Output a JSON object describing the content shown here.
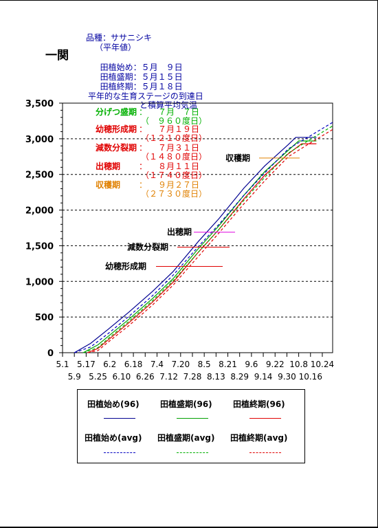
{
  "location_title": "一関",
  "cultivar_line": "品種：ササニシキ",
  "normal_note": "（平年値）",
  "planting_info": [
    {
      "label": "田植始め：",
      "value": "５月　９日"
    },
    {
      "label": "田植盛期：",
      "value": "５月１５日"
    },
    {
      "label": "田植終期：",
      "value": "５月１８日"
    }
  ],
  "chart_heading_1": "平年的な生育ステージの到達日",
  "chart_heading_2": "と積算平均気温",
  "stages": [
    {
      "name": "分げつ盛期",
      "colon": "：",
      "date": "７月　７日",
      "degree": "（　９６０度日）",
      "color": "#00b000",
      "line_y": null
    },
    {
      "name": "幼穂形成期",
      "colon": "：",
      "date": "７月１９日",
      "degree": "（１２１０度日）",
      "color": "#e00000",
      "line_y": 1210
    },
    {
      "name": "減数分裂期",
      "colon": "：",
      "date": "７月３１日",
      "degree": "（１４８０度日）",
      "color": "#e00000",
      "line_y": 1480
    },
    {
      "name": "出穂期",
      "colon": "：",
      "date": "８月１１日",
      "degree": "（１７４０度日）",
      "color": "#e00000",
      "line_y": 1740
    },
    {
      "name": "収穫期",
      "colon": "：",
      "date": "９月２７日",
      "degree": "（２７３０度日）",
      "color": "#e08000",
      "line_y": 2730
    }
  ],
  "chart_labels": {
    "heading_stage": "幼穂形成期",
    "meiosis": "減数分裂期",
    "heading": "出穂期",
    "harvest": "収穫期"
  },
  "chart_data": {
    "type": "line",
    "ylim": [
      0,
      3500
    ],
    "y_ticks": [
      "0",
      "500",
      "1,000",
      "1,500",
      "2,000",
      "2,500",
      "3,000",
      "3,500"
    ],
    "x_tick_labels_row1": [
      "5.1",
      "5.17",
      "6.2",
      "6.18",
      "7.4",
      "7.20",
      "8.5",
      "8.21",
      "9.6",
      "9.22",
      "10.8",
      "10.24"
    ],
    "x_tick_labels_row2": [
      "5.9",
      "5.25",
      "6.10",
      "6.26",
      "7.12",
      "7.28",
      "8.13",
      "8.29",
      "9.14",
      "9.30",
      "10.16"
    ],
    "x_start": "5.1",
    "x_end": "10.31",
    "series": [
      {
        "name": "田植始め(96)",
        "color": "#000090",
        "dash": false,
        "x": [
          "5.9",
          "5.20",
          "6.1",
          "6.15",
          "7.1",
          "7.15",
          "8.1",
          "8.15",
          "9.1",
          "9.15",
          "10.1",
          "10.6",
          "10.20"
        ],
        "y": [
          0,
          130,
          330,
          570,
          860,
          1140,
          1560,
          1880,
          2310,
          2620,
          2920,
          3020,
          3020
        ]
      },
      {
        "name": "田植盛期(96)",
        "color": "#00a000",
        "dash": false,
        "x": [
          "5.15",
          "5.25",
          "6.1",
          "6.15",
          "7.1",
          "7.15",
          "8.1",
          "8.15",
          "9.1",
          "9.15",
          "10.1",
          "10.8",
          "10.20"
        ],
        "y": [
          0,
          110,
          230,
          470,
          760,
          1040,
          1460,
          1780,
          2210,
          2540,
          2840,
          2970,
          2970
        ]
      },
      {
        "name": "田植終期(96)",
        "color": "#e00000",
        "dash": false,
        "x": [
          "5.18",
          "5.25",
          "6.1",
          "6.15",
          "7.1",
          "7.15",
          "8.1",
          "8.15",
          "9.1",
          "9.15",
          "10.1",
          "10.10",
          "10.20"
        ],
        "y": [
          0,
          60,
          180,
          420,
          710,
          990,
          1410,
          1730,
          2160,
          2490,
          2790,
          2930,
          2930
        ]
      },
      {
        "name": "田植始め(avg)",
        "color": "#0000c0",
        "dash": true,
        "x": [
          "5.9",
          "5.20",
          "6.1",
          "6.15",
          "7.1",
          "7.15",
          "8.1",
          "8.15",
          "9.1",
          "9.15",
          "10.1",
          "10.15",
          "10.31"
        ],
        "y": [
          0,
          80,
          270,
          510,
          800,
          1090,
          1490,
          1800,
          2210,
          2520,
          2860,
          3030,
          3230
        ]
      },
      {
        "name": "田植盛期(avg)",
        "color": "#00b000",
        "dash": true,
        "x": [
          "5.15",
          "5.25",
          "6.1",
          "6.15",
          "7.1",
          "7.15",
          "8.1",
          "8.15",
          "9.1",
          "9.15",
          "10.1",
          "10.15",
          "10.31"
        ],
        "y": [
          0,
          70,
          200,
          440,
          730,
          1010,
          1410,
          1730,
          2140,
          2460,
          2800,
          2980,
          3180
        ]
      },
      {
        "name": "田植終期(avg)",
        "color": "#e00000",
        "dash": true,
        "x": [
          "5.18",
          "5.25",
          "6.1",
          "6.15",
          "7.1",
          "7.15",
          "8.1",
          "8.15",
          "9.1",
          "9.15",
          "10.1",
          "10.15",
          "10.31"
        ],
        "y": [
          0,
          30,
          150,
          380,
          670,
          950,
          1350,
          1680,
          2090,
          2410,
          2750,
          2930,
          3130
        ]
      }
    ]
  },
  "legend": [
    {
      "label": "田植始め(96)",
      "color": "#000090",
      "dash": false
    },
    {
      "label": "田植盛期(96)",
      "color": "#00a000",
      "dash": false
    },
    {
      "label": "田植終期(96)",
      "color": "#e00000",
      "dash": false
    },
    {
      "label": "田植始め(avg)",
      "color": "#0000c0",
      "dash": true
    },
    {
      "label": "田植盛期(avg)",
      "color": "#00b000",
      "dash": true
    },
    {
      "label": "田植終期(avg)",
      "color": "#e00000",
      "dash": true
    }
  ]
}
